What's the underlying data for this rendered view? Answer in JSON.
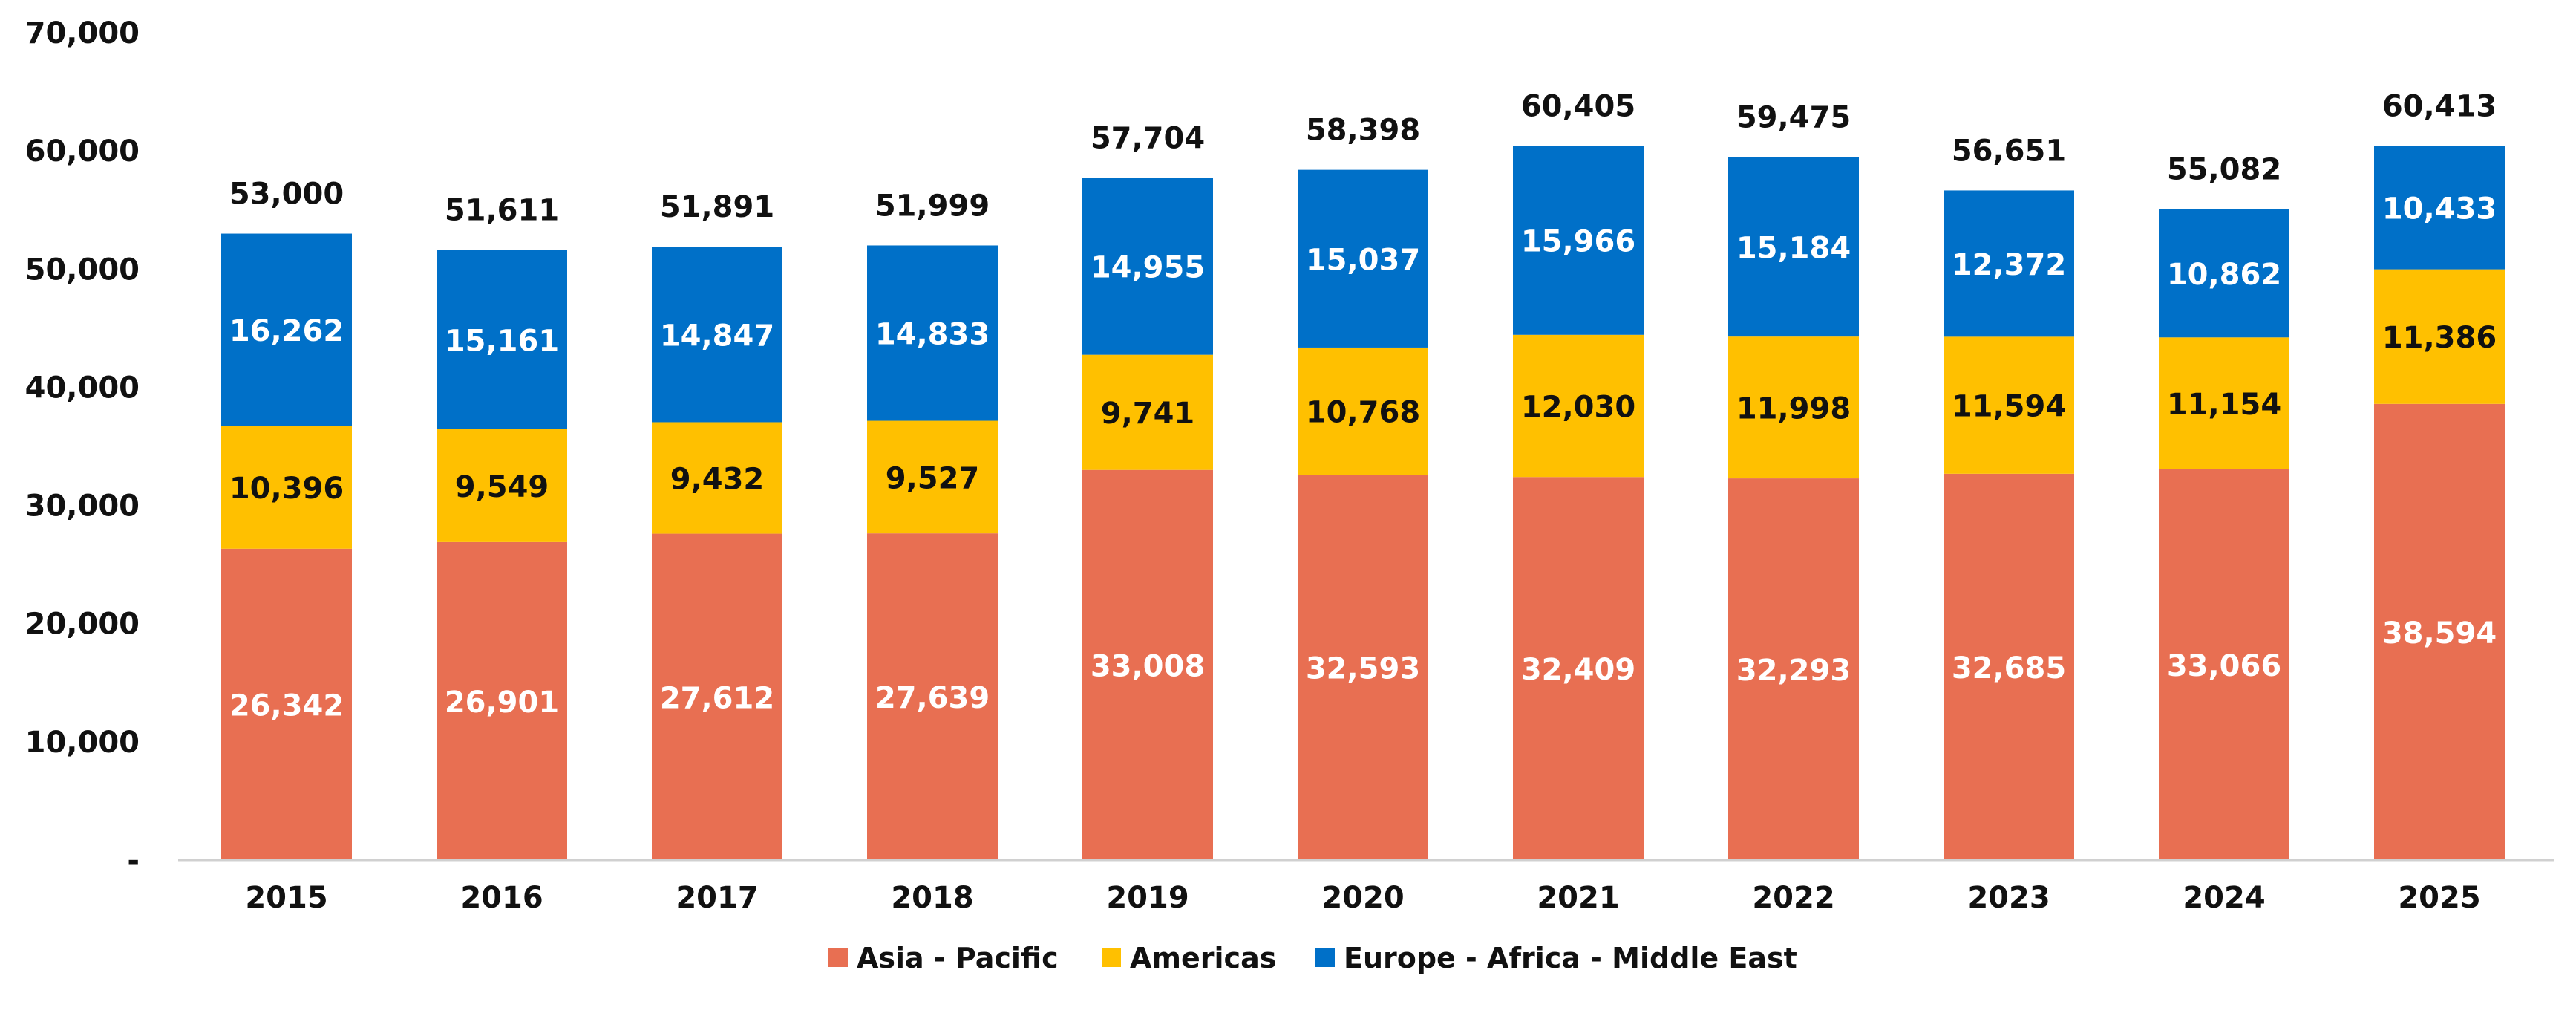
{
  "chart_data": {
    "type": "bar",
    "stacked": true,
    "title": "",
    "xlabel": "",
    "ylabel": "",
    "categories": [
      "2015",
      "2016",
      "2017",
      "2018",
      "2019",
      "2020",
      "2021",
      "2022",
      "2023",
      "2024",
      "2025"
    ],
    "series": [
      {
        "name": "Asia - Pacific",
        "color": "#E86F52",
        "label_color": "#ffffff",
        "values": [
          26342,
          26901,
          27612,
          27639,
          33008,
          32593,
          32409,
          32293,
          32685,
          33066,
          38594
        ],
        "labels": [
          "26,342",
          "26,901",
          "27,612",
          "27,639",
          "33,008",
          "32,593",
          "32,409",
          "32,293",
          "32,685",
          "33,066",
          "38,594"
        ]
      },
      {
        "name": "Americas",
        "color": "#FFC000",
        "label_color": "#111111",
        "values": [
          10396,
          9549,
          9432,
          9527,
          9741,
          10768,
          12030,
          11998,
          11594,
          11154,
          11386
        ],
        "labels": [
          "10,396",
          "9,549",
          "9,432",
          "9,527",
          "9,741",
          "10,768",
          "12,030",
          "11,998",
          "11,594",
          "11,154",
          "11,386"
        ]
      },
      {
        "name": "Europe - Africa - Middle East",
        "color": "#0070C8",
        "label_color": "#ffffff",
        "values": [
          16262,
          15161,
          14847,
          14833,
          14955,
          15037,
          15966,
          15184,
          12372,
          10862,
          10433
        ],
        "labels": [
          "16,262",
          "15,161",
          "14,847",
          "14,833",
          "14,955",
          "15,037",
          "15,966",
          "15,184",
          "12,372",
          "10,862",
          "10,433"
        ]
      }
    ],
    "totals": [
      53000,
      51611,
      51891,
      51999,
      57704,
      58398,
      60405,
      59475,
      56651,
      55082,
      60413
    ],
    "total_labels": [
      "53,000",
      "51,611",
      "51,891",
      "51,999",
      "57,704",
      "58,398",
      "60,405",
      "59,475",
      "56,651",
      "55,082",
      "60,413"
    ],
    "ylim": [
      0,
      70000
    ],
    "yticks": [
      0,
      10000,
      20000,
      30000,
      40000,
      50000,
      60000,
      70000
    ],
    "ytick_labels": [
      "-",
      "10,000",
      "20,000",
      "30,000",
      "40,000",
      "50,000",
      "60,000",
      "70,000"
    ],
    "grid": false,
    "legend": "bottom-center"
  }
}
